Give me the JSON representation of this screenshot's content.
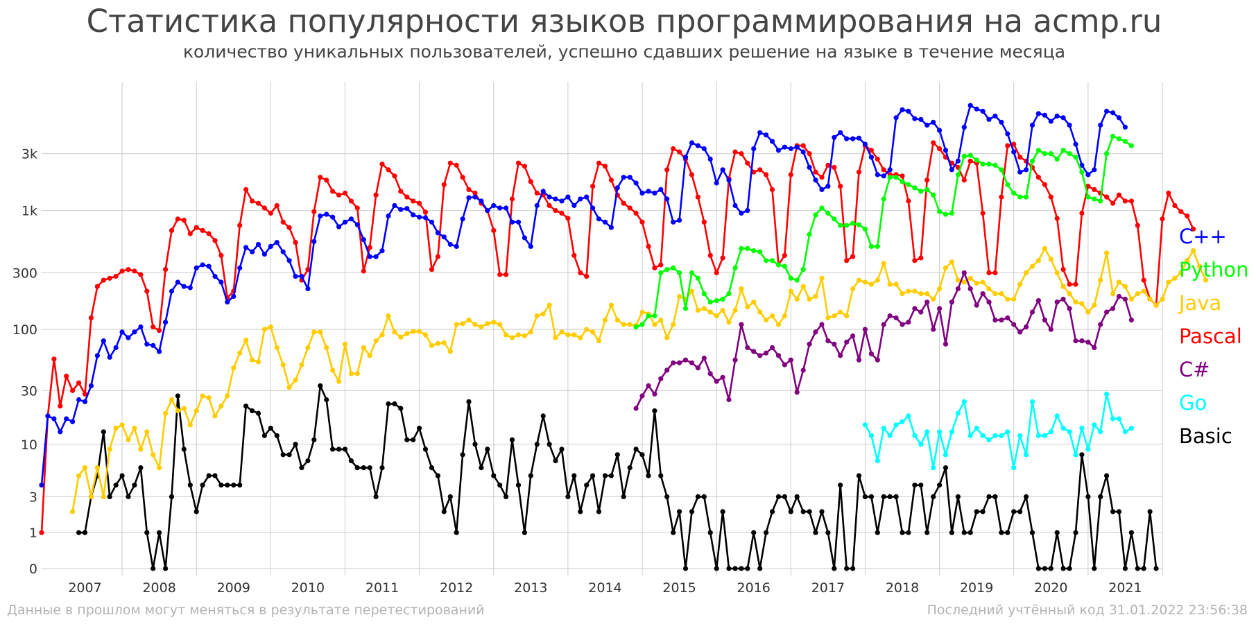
{
  "title": "Статистика популярности языков программирования на acmp.ru",
  "subtitle": "количество уникальных пользователей, успешно сдавших решение на языке в течение месяца",
  "footer_left": "Данные в прошлом могут меняться в результате перетестирований",
  "footer_right": "Последний учтённый код 31.01.2022 23:56:38",
  "chart_data": {
    "type": "line",
    "y_scale": "log1p",
    "y_ticks": [
      {
        "value": 0,
        "label": "0"
      },
      {
        "value": 1,
        "label": "1"
      },
      {
        "value": 3,
        "label": "3"
      },
      {
        "value": 10,
        "label": "10"
      },
      {
        "value": 30,
        "label": "30"
      },
      {
        "value": 100,
        "label": "100"
      },
      {
        "value": 300,
        "label": "300"
      },
      {
        "value": 1000,
        "label": "1k"
      },
      {
        "value": 3000,
        "label": "3k"
      }
    ],
    "x_start": "2006-12",
    "x_end": "2022-01",
    "year_labels": [
      "2007",
      "2008",
      "2009",
      "2010",
      "2011",
      "2012",
      "2013",
      "2014",
      "2015",
      "2016",
      "2017",
      "2018",
      "2019",
      "2020",
      "2021"
    ],
    "grid": true,
    "legend_position": "right",
    "series": [
      {
        "name": "Basic",
        "color": "#000000",
        "start": "2007-06",
        "values": [
          1,
          1,
          3,
          5,
          13,
          3,
          4,
          5,
          3,
          4,
          6,
          1,
          0,
          1,
          0,
          3,
          27,
          9,
          4,
          2,
          4,
          5,
          5,
          4,
          4,
          4,
          4,
          22,
          20,
          19,
          12,
          14,
          12,
          8,
          8,
          10,
          6,
          7,
          11,
          33,
          25,
          9,
          9,
          9,
          7,
          6,
          6,
          6,
          3,
          6,
          23,
          23,
          21,
          11,
          11,
          14,
          9,
          6,
          5,
          2,
          3,
          1,
          8,
          24,
          10,
          6,
          9,
          5,
          4,
          3,
          11,
          4,
          1,
          5,
          10,
          18,
          10,
          7,
          9,
          3,
          5,
          2,
          4,
          5,
          2,
          5,
          5,
          8,
          3,
          6,
          9,
          8,
          5,
          20,
          5,
          3,
          1,
          2,
          0,
          2,
          3,
          3,
          1,
          0,
          2,
          0,
          0,
          0,
          0,
          1,
          0,
          1,
          2,
          3,
          3,
          2,
          3,
          2,
          2,
          1,
          2,
          1,
          0,
          4,
          0,
          0,
          5,
          3,
          3,
          1,
          3,
          3,
          3,
          1,
          1,
          4,
          4,
          1,
          3,
          4,
          6,
          1,
          3,
          1,
          1,
          2,
          2,
          3,
          3,
          1,
          1,
          2,
          2,
          3,
          1,
          0,
          0,
          0,
          1,
          0,
          0,
          1,
          8,
          3,
          0,
          3,
          5,
          2,
          2,
          0,
          1,
          0,
          0,
          2,
          0
        ]
      },
      {
        "name": "Pascal",
        "color": "#ff0000",
        "start": "2006-12",
        "values": [
          1,
          18,
          56,
          22,
          40,
          30,
          35,
          28,
          125,
          230,
          260,
          270,
          280,
          310,
          320,
          310,
          290,
          210,
          105,
          98,
          320,
          680,
          850,
          830,
          640,
          720,
          680,
          640,
          560,
          420,
          185,
          210,
          750,
          1500,
          1200,
          1150,
          1050,
          950,
          1100,
          800,
          720,
          540,
          260,
          320,
          980,
          1900,
          1800,
          1450,
          1350,
          1400,
          1200,
          1050,
          310,
          490,
          1350,
          2450,
          2200,
          1950,
          1450,
          1300,
          1200,
          1150,
          970,
          320,
          410,
          1650,
          2500,
          2400,
          1900,
          1500,
          1400,
          1150,
          1000,
          680,
          290,
          290,
          1250,
          2500,
          2350,
          1750,
          1400,
          1350,
          1100,
          1000,
          950,
          860,
          420,
          300,
          280,
          1600,
          2500,
          2350,
          1800,
          1350,
          1150,
          1050,
          950,
          800,
          500,
          330,
          350,
          2200,
          3300,
          3100,
          2700,
          2000,
          1300,
          800,
          420,
          300,
          400,
          1850,
          3100,
          3000,
          2500,
          2100,
          2200,
          2000,
          1500,
          350,
          420,
          2000,
          3500,
          3500,
          3000,
          2100,
          1900,
          2400,
          2300,
          1600,
          380,
          410,
          2100,
          3500,
          3200,
          2700,
          2200,
          2000,
          2000,
          1950,
          1200,
          380,
          400,
          1800,
          3700,
          3300,
          2800,
          2500,
          2300,
          1800,
          2600,
          2500,
          950,
          300,
          300,
          1300,
          3500,
          3600,
          2800,
          2600,
          2300,
          1900,
          1650,
          1300,
          860,
          320,
          240,
          240,
          950,
          1600,
          1500,
          1400,
          1300,
          1150,
          1350,
          1200,
          1200,
          750,
          260,
          180,
          160,
          850,
          1400,
          1100,
          980,
          900,
          700
        ]
      },
      {
        "name": "C++",
        "color": "#0000ff",
        "start": "2006-12",
        "values": [
          4,
          18,
          17,
          13,
          17,
          16,
          25,
          24,
          33,
          60,
          80,
          58,
          70,
          95,
          85,
          95,
          105,
          75,
          73,
          65,
          115,
          210,
          250,
          230,
          225,
          330,
          350,
          340,
          280,
          250,
          170,
          190,
          330,
          490,
          450,
          520,
          430,
          500,
          540,
          450,
          380,
          280,
          280,
          220,
          550,
          900,
          930,
          880,
          730,
          800,
          850,
          760,
          570,
          410,
          410,
          460,
          900,
          1100,
          1020,
          1040,
          920,
          880,
          870,
          800,
          650,
          600,
          520,
          500,
          850,
          1280,
          1300,
          1200,
          1000,
          1100,
          1050,
          1050,
          800,
          800,
          590,
          500,
          1100,
          1450,
          1300,
          1250,
          1200,
          1300,
          1100,
          1250,
          1300,
          1050,
          850,
          800,
          720,
          1550,
          1900,
          1900,
          1700,
          1400,
          1450,
          1400,
          1500,
          1250,
          800,
          830,
          2800,
          3700,
          3500,
          3300,
          2700,
          1700,
          2200,
          1800,
          1100,
          950,
          1000,
          3300,
          4500,
          4300,
          3800,
          3200,
          3400,
          3300,
          3400,
          3100,
          2300,
          1800,
          1500,
          1600,
          4100,
          4500,
          4000,
          4000,
          4050,
          3600,
          2800,
          2000,
          1950,
          2200,
          6000,
          7000,
          6800,
          5900,
          5800,
          5200,
          5500,
          4700,
          3200,
          2200,
          2600,
          5000,
          7600,
          7100,
          6800,
          5800,
          6200,
          5500,
          4400,
          3100,
          2100,
          2200,
          5200,
          6500,
          6300,
          5600,
          6200,
          6000,
          5200,
          3600,
          2400,
          2000,
          2200,
          5200,
          6800,
          6600,
          6000,
          5000
        ]
      },
      {
        "name": "Java",
        "color": "#ffcc00",
        "start": "2007-05",
        "values": [
          2,
          5,
          6,
          3,
          6,
          3,
          9,
          14,
          15,
          11,
          14,
          9,
          13,
          8,
          6,
          19,
          25,
          20,
          21,
          15,
          20,
          27,
          26,
          18,
          22,
          27,
          47,
          63,
          81,
          55,
          53,
          100,
          105,
          70,
          50,
          32,
          37,
          50,
          70,
          95,
          95,
          70,
          45,
          36,
          75,
          42,
          42,
          70,
          60,
          80,
          90,
          130,
          95,
          86,
          92,
          96,
          96,
          90,
          73,
          76,
          77,
          65,
          110,
          112,
          120,
          110,
          105,
          112,
          115,
          110,
          90,
          85,
          90,
          88,
          95,
          130,
          135,
          160,
          85,
          95,
          90,
          90,
          85,
          100,
          95,
          80,
          120,
          160,
          120,
          110,
          110,
          108,
          140,
          135,
          110,
          120,
          85,
          110,
          190,
          180,
          210,
          145,
          150,
          140,
          130,
          145,
          115,
          145,
          220,
          155,
          170,
          140,
          120,
          130,
          110,
          130,
          210,
          180,
          230,
          180,
          190,
          270,
          125,
          130,
          140,
          130,
          220,
          260,
          250,
          240,
          260,
          360,
          240,
          240,
          200,
          210,
          210,
          200,
          200,
          180,
          220,
          330,
          370,
          260,
          250,
          270,
          245,
          250,
          220,
          200,
          200,
          180,
          180,
          240,
          300,
          340,
          380,
          480,
          390,
          300,
          230,
          200,
          170,
          165,
          140,
          160,
          260,
          440,
          200,
          250,
          230,
          180,
          200,
          210,
          180,
          160,
          180,
          250,
          270,
          300,
          380,
          460,
          340,
          260
        ]
      },
      {
        "name": "Python",
        "color": "#00ff00",
        "start": "2014-12",
        "values": [
          105,
          110,
          130,
          130,
          300,
          320,
          330,
          300,
          150,
          300,
          270,
          200,
          170,
          175,
          180,
          200,
          330,
          480,
          480,
          460,
          450,
          380,
          380,
          350,
          340,
          270,
          260,
          320,
          630,
          920,
          1050,
          950,
          850,
          750,
          750,
          780,
          760,
          700,
          500,
          500,
          1250,
          1900,
          1900,
          1750,
          1650,
          1550,
          1450,
          1500,
          1350,
          980,
          930,
          950,
          2000,
          2850,
          2900,
          2650,
          2450,
          2450,
          2400,
          2200,
          1650,
          1400,
          1300,
          1300,
          2600,
          3200,
          3000,
          3000,
          2700,
          3200,
          3000,
          2800,
          2100,
          1300,
          1250,
          1200,
          3000,
          4200,
          4000,
          3800,
          3500
        ]
      },
      {
        "name": "C#",
        "color": "#800080",
        "start": "2014-12",
        "values": [
          21,
          27,
          33,
          28,
          38,
          45,
          52,
          52,
          55,
          52,
          47,
          57,
          42,
          36,
          39,
          25,
          55,
          110,
          70,
          65,
          60,
          63,
          70,
          60,
          50,
          55,
          29,
          45,
          75,
          95,
          110,
          80,
          75,
          60,
          78,
          88,
          55,
          100,
          62,
          55,
          110,
          130,
          125,
          110,
          115,
          150,
          140,
          170,
          100,
          150,
          75,
          170,
          220,
          300,
          220,
          160,
          200,
          170,
          120,
          120,
          125,
          110,
          95,
          105,
          140,
          175,
          120,
          100,
          170,
          180,
          150,
          80,
          80,
          78,
          70,
          110,
          140,
          150,
          190,
          180,
          120
        ]
      },
      {
        "name": "Go",
        "color": "#00ffff",
        "start": "2018-01",
        "values": [
          15,
          12,
          7,
          14,
          12,
          15,
          16,
          18,
          12,
          10,
          13,
          6,
          13,
          8,
          13,
          19,
          24,
          12,
          14,
          12,
          11,
          12,
          12,
          13,
          6,
          12,
          8,
          24,
          12,
          12,
          13,
          18,
          14,
          13,
          8,
          14,
          9,
          15,
          13,
          28,
          17,
          17,
          13,
          14
        ]
      }
    ]
  },
  "colors": {
    "grid": "#cccccc",
    "tick_label": "#333333",
    "title_text": "#444444",
    "footer_text": "#b3b3b3"
  }
}
